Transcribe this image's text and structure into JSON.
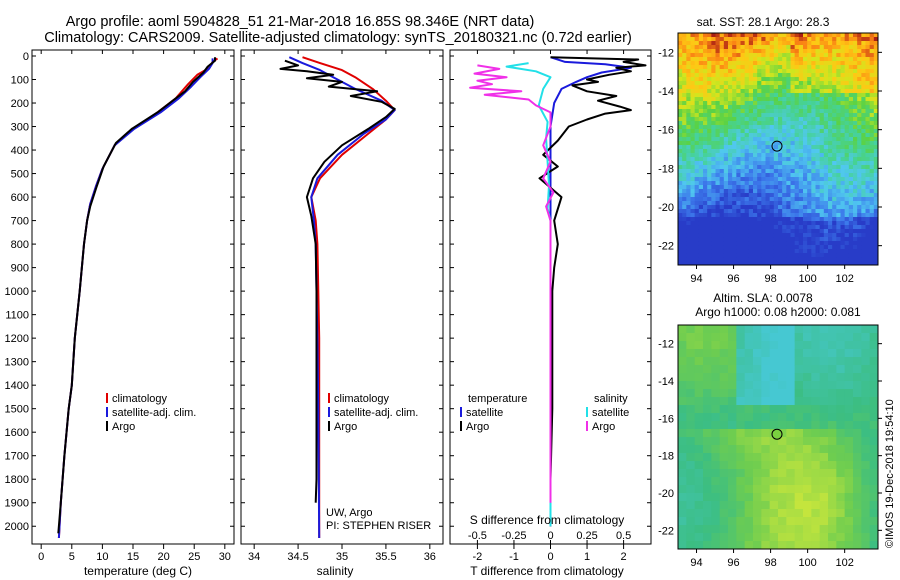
{
  "title_line1": "Argo profile: aoml 5904828_51 21-Mar-2018 16.85S 98.346E (NRT data)",
  "title_line2": "Climatology: CARS2009. Satellite-adjusted climatology: synTS_20180321.nc (0.72d earlier)",
  "colors": {
    "climatology": "#e00000",
    "satellite": "#1a1adc",
    "argo": "#000000",
    "sal_satellite": "#22e0e8",
    "sal_argo": "#f030e8"
  },
  "depth_axis": {
    "labels": [
      "0",
      "100",
      "200",
      "300",
      "400",
      "500",
      "600",
      "700",
      "800",
      "900",
      "1000",
      "1100",
      "1200",
      "1300",
      "1400",
      "1500",
      "1600",
      "1700",
      "1800",
      "1900",
      "2000"
    ],
    "range": [
      0,
      2050
    ]
  },
  "chart_data": [
    {
      "type": "line",
      "name": "temperature_profile",
      "xlabel": "temperature (deg C)",
      "xlim": [
        -1.5,
        31.5
      ],
      "xticks": [
        "0",
        "5",
        "10",
        "15",
        "20",
        "25",
        "30"
      ],
      "ylim": [
        0,
        2050
      ],
      "legend": [
        "climatology",
        "satellite-adj. clim.",
        "Argo"
      ],
      "series": [
        {
          "name": "climatology",
          "color_key": "climatology",
          "points": [
            [
              28.8,
              10
            ],
            [
              28.0,
              25
            ],
            [
              27.5,
              50
            ],
            [
              25.5,
              80
            ],
            [
              24.0,
              120
            ],
            [
              22.0,
              180
            ],
            [
              19.0,
              240
            ],
            [
              15.0,
              310
            ],
            [
              12.0,
              380
            ],
            [
              10.0,
              480
            ],
            [
              9.0,
              550
            ],
            [
              8.0,
              630
            ],
            [
              7.5,
              700
            ],
            [
              7.0,
              800
            ],
            [
              6.3,
              1000
            ],
            [
              5.5,
              1200
            ],
            [
              5.0,
              1400
            ],
            [
              4.5,
              1500
            ],
            [
              3.8,
              1700
            ],
            [
              3.2,
              1900
            ],
            [
              2.9,
              2050
            ]
          ]
        },
        {
          "name": "satellite-adj. clim.",
          "color_key": "satellite",
          "points": [
            [
              28.0,
              10
            ],
            [
              28.0,
              30
            ],
            [
              27.4,
              55
            ],
            [
              26.0,
              90
            ],
            [
              24.5,
              130
            ],
            [
              22.5,
              180
            ],
            [
              19.5,
              240
            ],
            [
              15.2,
              310
            ],
            [
              12.0,
              380
            ],
            [
              10.0,
              480
            ],
            [
              9.0,
              550
            ],
            [
              8.0,
              630
            ],
            [
              7.5,
              700
            ],
            [
              7.0,
              800
            ],
            [
              6.3,
              1000
            ],
            [
              5.5,
              1200
            ],
            [
              5.0,
              1400
            ],
            [
              4.5,
              1500
            ],
            [
              3.8,
              1700
            ],
            [
              3.2,
              1900
            ],
            [
              2.9,
              2050
            ]
          ]
        },
        {
          "name": "Argo",
          "color_key": "argo",
          "points": [
            [
              28.4,
              5
            ],
            [
              28.4,
              20
            ],
            [
              27.2,
              45
            ],
            [
              26.5,
              70
            ],
            [
              24.8,
              110
            ],
            [
              23.5,
              150
            ],
            [
              21.5,
              190
            ],
            [
              19.0,
              240
            ],
            [
              14.8,
              310
            ],
            [
              12.2,
              370
            ],
            [
              10.2,
              470
            ],
            [
              9.0,
              560
            ],
            [
              8.0,
              640
            ],
            [
              7.5,
              700
            ],
            [
              7.0,
              800
            ],
            [
              6.3,
              1000
            ],
            [
              5.5,
              1200
            ],
            [
              5.0,
              1400
            ],
            [
              4.5,
              1500
            ],
            [
              3.8,
              1700
            ],
            [
              3.2,
              1900
            ],
            [
              2.8,
              2030
            ]
          ]
        }
      ]
    },
    {
      "type": "line",
      "name": "salinity_profile",
      "xlabel": "salinity",
      "xlim": [
        33.85,
        36.15
      ],
      "xticks": [
        "34",
        "34.5",
        "35",
        "35.5",
        "36"
      ],
      "ylim": [
        0,
        2050
      ],
      "legend": [
        "climatology",
        "satellite-adj. clim.",
        "Argo"
      ],
      "series": [
        {
          "name": "climatology",
          "color_key": "climatology",
          "points": [
            [
              34.55,
              5
            ],
            [
              34.75,
              30
            ],
            [
              35.0,
              60
            ],
            [
              35.15,
              90
            ],
            [
              35.35,
              140
            ],
            [
              35.5,
              190
            ],
            [
              35.6,
              230
            ],
            [
              35.5,
              270
            ],
            [
              35.3,
              330
            ],
            [
              35.0,
              420
            ],
            [
              34.75,
              520
            ],
            [
              34.65,
              600
            ],
            [
              34.7,
              700
            ],
            [
              34.72,
              800
            ],
            [
              34.73,
              1000
            ],
            [
              34.74,
              1200
            ],
            [
              34.74,
              1500
            ],
            [
              34.74,
              2050
            ]
          ]
        },
        {
          "name": "satellite-adj. clim.",
          "color_key": "satellite",
          "points": [
            [
              34.4,
              5
            ],
            [
              34.55,
              30
            ],
            [
              34.75,
              60
            ],
            [
              34.9,
              90
            ],
            [
              35.15,
              140
            ],
            [
              35.45,
              190
            ],
            [
              35.6,
              230
            ],
            [
              35.5,
              270
            ],
            [
              35.25,
              330
            ],
            [
              34.95,
              420
            ],
            [
              34.72,
              520
            ],
            [
              34.65,
              600
            ],
            [
              34.68,
              700
            ],
            [
              34.7,
              800
            ],
            [
              34.71,
              1000
            ],
            [
              34.72,
              1200
            ],
            [
              34.73,
              1500
            ],
            [
              34.74,
              2050
            ]
          ]
        },
        {
          "name": "Argo",
          "color_key": "argo",
          "points": [
            [
              34.35,
              20
            ],
            [
              34.5,
              40
            ],
            [
              34.3,
              55
            ],
            [
              34.6,
              65
            ],
            [
              34.9,
              80
            ],
            [
              34.6,
              95
            ],
            [
              35.0,
              110
            ],
            [
              34.85,
              130
            ],
            [
              35.4,
              150
            ],
            [
              35.1,
              170
            ],
            [
              35.45,
              195
            ],
            [
              35.6,
              225
            ],
            [
              35.5,
              260
            ],
            [
              35.3,
              310
            ],
            [
              35.0,
              380
            ],
            [
              34.8,
              450
            ],
            [
              34.67,
              520
            ],
            [
              34.6,
              600
            ],
            [
              34.65,
              680
            ],
            [
              34.7,
              800
            ],
            [
              34.71,
              1000
            ],
            [
              34.71,
              1200
            ],
            [
              34.71,
              1500
            ],
            [
              34.71,
              1800
            ],
            [
              34.7,
              1900
            ]
          ]
        }
      ]
    },
    {
      "type": "line",
      "name": "difference_profile",
      "xlabel": "T difference from climatology",
      "xlabel_top": "S difference from climatology",
      "xlim": [
        -2.75,
        2.75
      ],
      "xticks": [
        "-2",
        "-1",
        "0",
        "1",
        "2"
      ],
      "xticks_top": [
        "-0.5",
        "-0.25",
        "0",
        "0.25",
        "0.5"
      ],
      "ylim": [
        0,
        2050
      ],
      "legend_left_title": "temperature",
      "legend_right_title": "salinity",
      "legend": [
        "satellite",
        "Argo",
        "satellite",
        "Argo"
      ],
      "series": [
        {
          "name": "T satellite",
          "color_key": "satellite",
          "points": [
            [
              0.0,
              5
            ],
            [
              0.4,
              25
            ],
            [
              1.5,
              35
            ],
            [
              2.2,
              50
            ],
            [
              1.4,
              70
            ],
            [
              1.0,
              90
            ],
            [
              0.7,
              110
            ],
            [
              0.3,
              140
            ],
            [
              0.1,
              200
            ],
            [
              0.0,
              300
            ],
            [
              0.0,
              500
            ],
            [
              0.0,
              800
            ],
            [
              0.0,
              1200
            ],
            [
              0.0,
              1600
            ],
            [
              0.0,
              2000
            ]
          ]
        },
        {
          "name": "T Argo",
          "color_key": "argo",
          "points": [
            [
              0.0,
              5
            ],
            [
              2.4,
              15
            ],
            [
              2.0,
              25
            ],
            [
              2.6,
              40
            ],
            [
              1.8,
              50
            ],
            [
              2.2,
              65
            ],
            [
              1.6,
              80
            ],
            [
              1.0,
              100
            ],
            [
              1.3,
              110
            ],
            [
              0.6,
              125
            ],
            [
              1.0,
              150
            ],
            [
              1.8,
              170
            ],
            [
              1.3,
              190
            ],
            [
              1.9,
              215
            ],
            [
              2.2,
              230
            ],
            [
              1.5,
              245
            ],
            [
              1.0,
              270
            ],
            [
              0.5,
              300
            ],
            [
              0.2,
              360
            ],
            [
              -0.2,
              420
            ],
            [
              0.2,
              470
            ],
            [
              -0.3,
              520
            ],
            [
              0.3,
              600
            ],
            [
              0.1,
              700
            ],
            [
              0.2,
              800
            ],
            [
              0.1,
              900
            ],
            [
              0.05,
              1000
            ],
            [
              0.05,
              1200
            ],
            [
              0.05,
              1500
            ],
            [
              0.0,
              1800
            ],
            [
              0.0,
              2000
            ]
          ]
        },
        {
          "name": "S satellite",
          "color_key": "sal_satellite",
          "points": [
            [
              -0.15,
              30
            ],
            [
              -0.3,
              45
            ],
            [
              -0.1,
              65
            ],
            [
              0.0,
              90
            ],
            [
              -0.05,
              140
            ],
            [
              -0.08,
              210
            ],
            [
              -0.02,
              280
            ],
            [
              -0.03,
              350
            ],
            [
              -0.02,
              450
            ],
            [
              -0.01,
              550
            ],
            [
              -0.02,
              650
            ],
            [
              0.0,
              700
            ],
            [
              0.0,
              800
            ],
            [
              0.0,
              1000
            ],
            [
              0.0,
              1500
            ],
            [
              0.0,
              1800
            ],
            [
              0.0,
              2000
            ]
          ]
        },
        {
          "name": "S Argo",
          "color_key": "sal_argo",
          "points": [
            [
              -0.5,
              40
            ],
            [
              -0.35,
              55
            ],
            [
              -0.52,
              75
            ],
            [
              -0.3,
              90
            ],
            [
              -0.5,
              105
            ],
            [
              -0.4,
              120
            ],
            [
              -0.55,
              135
            ],
            [
              -0.2,
              150
            ],
            [
              -0.45,
              165
            ],
            [
              -0.15,
              185
            ],
            [
              -0.1,
              210
            ],
            [
              0.0,
              240
            ],
            [
              0.0,
              300
            ],
            [
              -0.05,
              380
            ],
            [
              0.0,
              450
            ],
            [
              -0.05,
              520
            ],
            [
              0.02,
              580
            ],
            [
              -0.03,
              640
            ],
            [
              0.0,
              700
            ],
            [
              0.0,
              800
            ],
            [
              0.0,
              1000
            ],
            [
              0.0,
              1500
            ],
            [
              0.0,
              1900
            ]
          ]
        }
      ]
    }
  ],
  "legend_labels": {
    "climatology": "climatology",
    "satellite_adj": "satellite-adj. clim.",
    "argo": "Argo",
    "temperature": "temperature",
    "salinity": "salinity",
    "satellite": "satellite"
  },
  "footnote": {
    "line1": "UW, Argo",
    "line2": "PI: STEPHEN RISER"
  },
  "map_sst": {
    "title": "sat. SST: 28.1 Argo: 28.3",
    "lat_ticks": [
      "-12",
      "-14",
      "-16",
      "-18",
      "-20",
      "-22"
    ],
    "lon_ticks": [
      "94",
      "96",
      "98",
      "100",
      "102"
    ],
    "marker": {
      "lon": 98.346,
      "lat": -16.85
    }
  },
  "map_sla": {
    "title1": "Altim. SLA: 0.0078",
    "title2": "Argo h1000: 0.08 h2000: 0.081",
    "lat_ticks": [
      "-12",
      "-14",
      "-16",
      "-18",
      "-20",
      "-22"
    ],
    "lon_ticks": [
      "94",
      "96",
      "98",
      "100",
      "102"
    ],
    "marker": {
      "lon": 98.346,
      "lat": -16.85
    }
  },
  "credit": "©IMOS 19-Dec-2018 19:54:10"
}
